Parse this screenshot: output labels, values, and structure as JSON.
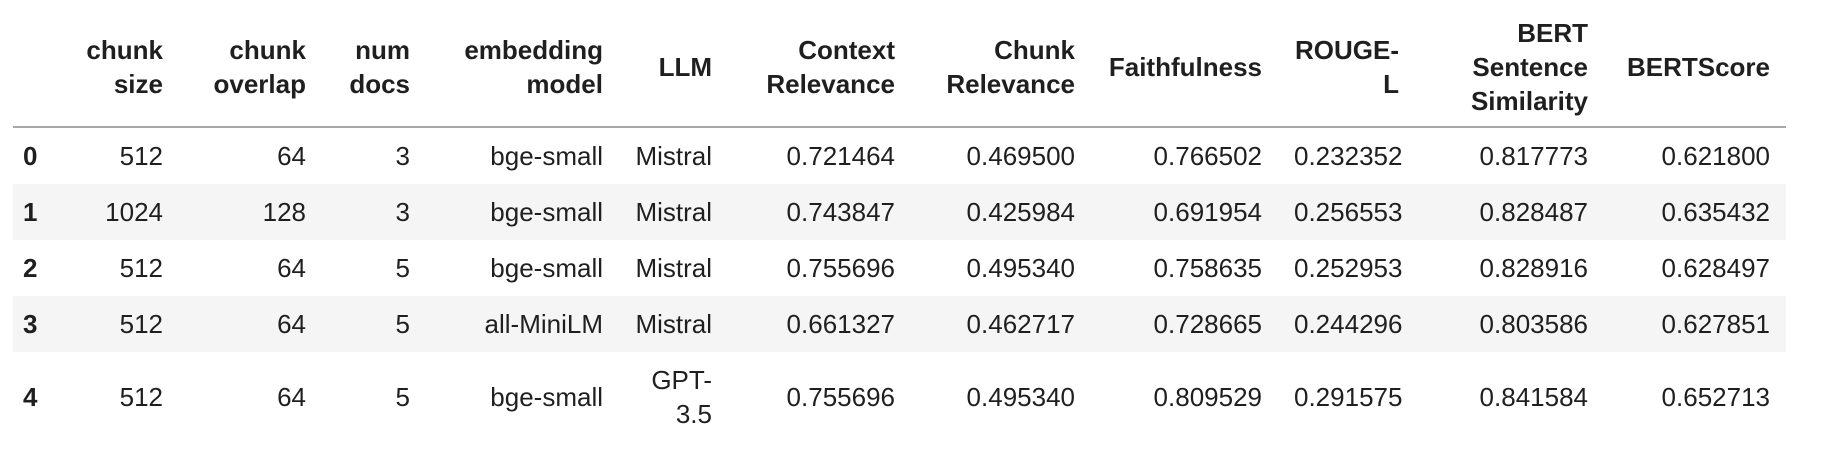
{
  "colors": {
    "text": "#1f1f1f",
    "row_stripe": "#f5f5f5",
    "header_rule": "#a8a8a8",
    "background": "#ffffff"
  },
  "table": {
    "kind": "dataframe-output",
    "index_header": "",
    "columns": [
      "chunk\nsize",
      "chunk\noverlap",
      "num\ndocs",
      "embedding\nmodel",
      "LLM",
      "Context\nRelevance",
      "Chunk\nRelevance",
      "Faithfulness",
      "ROUGE-\nL",
      "BERT\nSentence\nSimilarity",
      "BERTScore"
    ],
    "rows": [
      {
        "index": "0",
        "cells": [
          "512",
          "64",
          "3",
          "bge-small",
          "Mistral",
          "0.721464",
          "0.469500",
          "0.766502",
          "0.232352",
          "0.817773",
          "0.621800"
        ]
      },
      {
        "index": "1",
        "cells": [
          "1024",
          "128",
          "3",
          "bge-small",
          "Mistral",
          "0.743847",
          "0.425984",
          "0.691954",
          "0.256553",
          "0.828487",
          "0.635432"
        ]
      },
      {
        "index": "2",
        "cells": [
          "512",
          "64",
          "5",
          "bge-small",
          "Mistral",
          "0.755696",
          "0.495340",
          "0.758635",
          "0.252953",
          "0.828916",
          "0.628497"
        ]
      },
      {
        "index": "3",
        "cells": [
          "512",
          "64",
          "5",
          "all-MiniLM",
          "Mistral",
          "0.661327",
          "0.462717",
          "0.728665",
          "0.244296",
          "0.803586",
          "0.627851"
        ]
      },
      {
        "index": "4",
        "cells": [
          "512",
          "64",
          "5",
          "bge-small",
          "GPT-\n3.5",
          "0.755696",
          "0.495340",
          "0.809529",
          "0.291575",
          "0.841584",
          "0.652713"
        ]
      }
    ]
  }
}
